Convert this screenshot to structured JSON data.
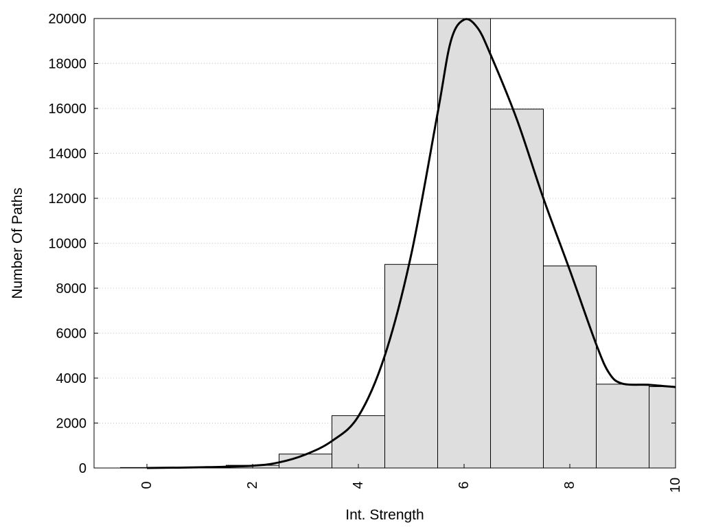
{
  "chart_data": {
    "type": "bar",
    "title": "",
    "xlabel": "Int. Strength",
    "ylabel": "Number Of Paths",
    "xlim": [
      -1,
      10
    ],
    "ylim": [
      0,
      20000
    ],
    "grid": "horizontal-dotted",
    "legend": "none",
    "x_ticks": [
      0,
      2,
      4,
      6,
      8,
      10
    ],
    "y_ticks": [
      0,
      2000,
      4000,
      6000,
      8000,
      10000,
      12000,
      14000,
      16000,
      18000,
      20000
    ],
    "bar_width": 1,
    "bar_color": "#dedede",
    "line_color": "#000000",
    "series": [
      {
        "type": "bar",
        "x": [
          0,
          1,
          2,
          3,
          4,
          5,
          6,
          7,
          8,
          9,
          10
        ],
        "values": [
          20,
          30,
          120,
          620,
          2330,
          9060,
          20000,
          15970,
          8990,
          3730,
          3620
        ]
      },
      {
        "type": "line",
        "x": [
          0,
          1,
          2,
          2.5,
          3,
          3.5,
          4,
          4.5,
          5,
          5.5,
          5.75,
          6,
          6.25,
          6.5,
          7,
          7.5,
          8,
          8.5,
          8.75,
          9,
          9.5,
          10
        ],
        "values": [
          0,
          30,
          100,
          250,
          600,
          1200,
          2300,
          5000,
          9500,
          15800,
          19000,
          19950,
          19600,
          18400,
          15500,
          12000,
          8800,
          5500,
          4200,
          3750,
          3700,
          3600
        ]
      }
    ]
  }
}
